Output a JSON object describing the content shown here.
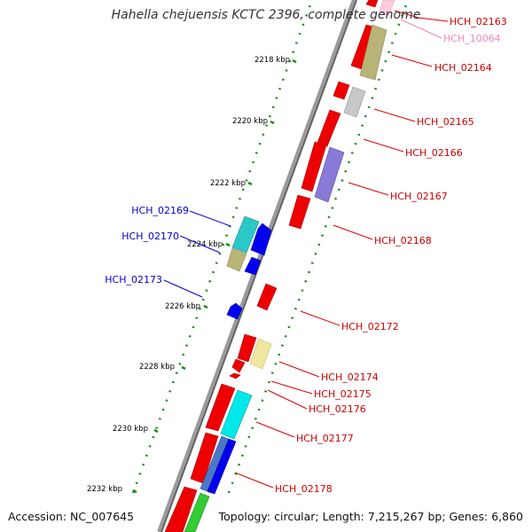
{
  "title": "Hahella chejuensis KCTC 2396, complete genome",
  "footer": {
    "accession": "Accession: NC_007645",
    "summary": "Topology: circular; Length: 7,215,267 bp; Genes: 6,860"
  },
  "colors": {
    "backbone": "#808080",
    "tick": "#1a8a1a",
    "right_label": "#cc0000",
    "left_label": "#0000cc",
    "pink_label": "#ee88bb"
  },
  "ticks": [
    "2218 kbp",
    "2220 kbp",
    "2222 kbp",
    "2224 kbp",
    "2226 kbp",
    "2228 kbp",
    "2230 kbp",
    "2232 kbp"
  ],
  "right_labels": [
    "HCH_02163",
    "HCH_10064",
    "HCH_02164",
    "HCH_02165",
    "HCH_02166",
    "HCH_02167",
    "HCH_02168",
    "HCH_02172",
    "HCH_02174",
    "HCH_02175",
    "HCH_02176",
    "HCH_02177",
    "HCH_02178"
  ],
  "left_labels": [
    "HCH_02169",
    "HCH_02170",
    "HCH_02173"
  ]
}
